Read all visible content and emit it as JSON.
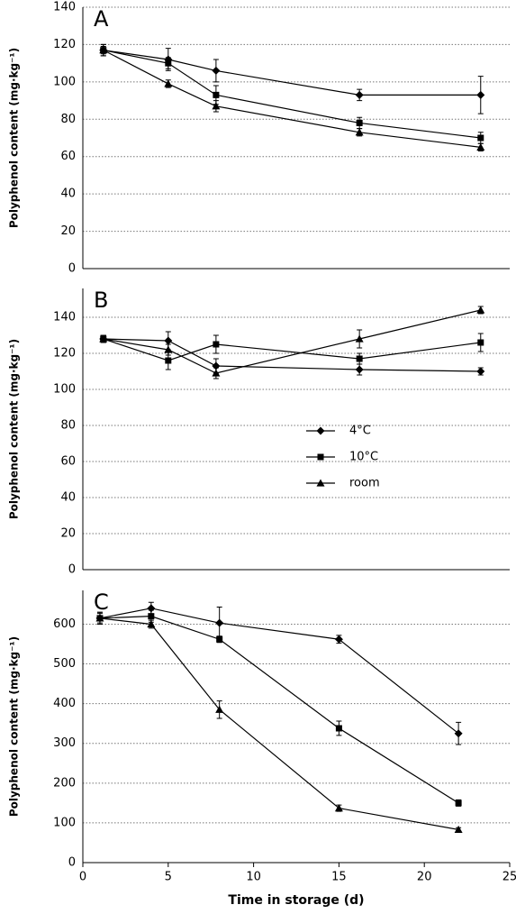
{
  "chart_data": [
    {
      "type": "line",
      "label": "A",
      "y_label": "Polyphenol content (mg·kg⁻¹)",
      "x": [
        1.2,
        5,
        7.8,
        16.2,
        23.3
      ],
      "xlim": [
        0,
        25
      ],
      "ylim": [
        0,
        140
      ],
      "yticks": [
        0,
        20,
        40,
        60,
        80,
        100,
        120,
        140
      ],
      "grid": true,
      "series": [
        {
          "marker": "diamond",
          "color": "#000000",
          "values": [
            117,
            112,
            106,
            93,
            93
          ],
          "errors": [
            3,
            6,
            6,
            3,
            10
          ]
        },
        {
          "marker": "square",
          "color": "#000000",
          "values": [
            117,
            110,
            93,
            78,
            70
          ],
          "errors": [
            3,
            3,
            5,
            3,
            3
          ]
        },
        {
          "marker": "triangle",
          "color": "#000000",
          "values": [
            117,
            99,
            87,
            73,
            65
          ],
          "errors": [
            2,
            2,
            3,
            2,
            2
          ]
        }
      ]
    },
    {
      "type": "line",
      "label": "B",
      "y_label": "Polyphenol content (mg·kg⁻¹)",
      "x": [
        1.2,
        5,
        7.8,
        16.2,
        23.3
      ],
      "xlim": [
        0,
        25
      ],
      "ylim": [
        0,
        156
      ],
      "yticks": [
        0,
        20,
        40,
        60,
        80,
        100,
        120,
        140
      ],
      "grid": true,
      "series": [
        {
          "name": "4°C",
          "marker": "diamond",
          "color": "#000000",
          "values": [
            128,
            127,
            113,
            111,
            110
          ],
          "errors": [
            2,
            5,
            4,
            3,
            2
          ]
        },
        {
          "name": "10°C",
          "marker": "square",
          "color": "#000000",
          "values": [
            128,
            116,
            125,
            117,
            126
          ],
          "errors": [
            2,
            5,
            5,
            3,
            5
          ]
        },
        {
          "name": "room",
          "marker": "triangle",
          "color": "#000000",
          "values": [
            128,
            122,
            109,
            128,
            144
          ],
          "errors": [
            2,
            3,
            3,
            5,
            2
          ]
        }
      ]
    },
    {
      "type": "line",
      "label": "C",
      "y_label": "Polyphenol content (mg·kg⁻¹)",
      "x_label": "Time in storage (d)",
      "x": [
        1,
        4,
        8,
        15,
        22
      ],
      "xlim": [
        0,
        25
      ],
      "xticks": [
        0,
        5,
        10,
        15,
        20,
        25
      ],
      "ylim": [
        0,
        685
      ],
      "yticks": [
        0,
        100,
        200,
        300,
        400,
        500,
        600
      ],
      "grid": true,
      "series": [
        {
          "marker": "diamond",
          "color": "#000000",
          "values": [
            615,
            640,
            603,
            562,
            325
          ],
          "errors": [
            12,
            15,
            40,
            10,
            28
          ]
        },
        {
          "marker": "square",
          "color": "#000000",
          "values": [
            615,
            620,
            562,
            338,
            150
          ],
          "errors": [
            15,
            15,
            8,
            18,
            8
          ]
        },
        {
          "marker": "triangle",
          "color": "#000000",
          "values": [
            615,
            600,
            385,
            137,
            83
          ],
          "errors": [
            15,
            10,
            22,
            8,
            5
          ]
        }
      ]
    }
  ]
}
